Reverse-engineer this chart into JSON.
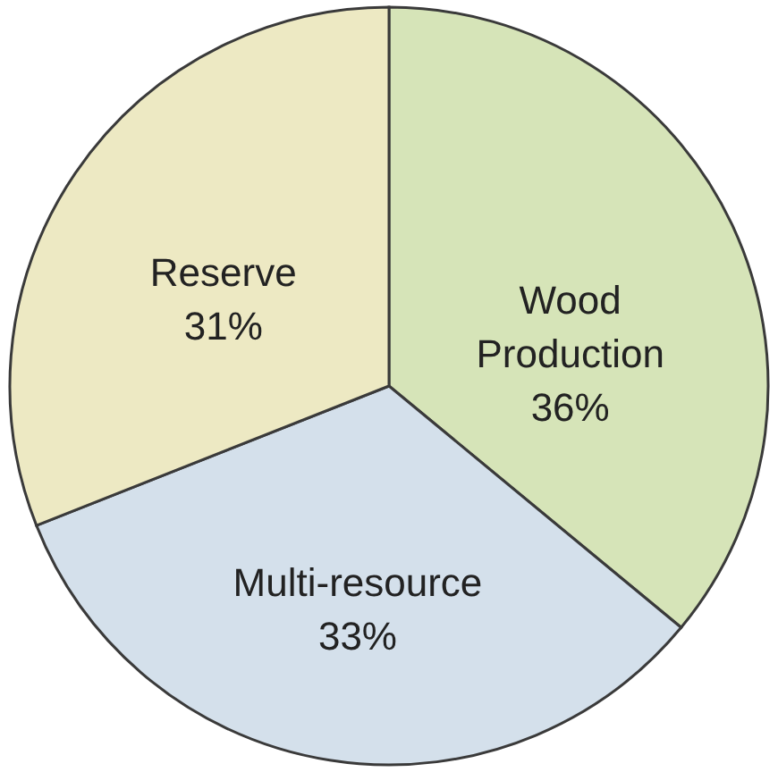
{
  "chart_data": {
    "type": "pie",
    "categories": [
      "Wood Production",
      "Multi-resource",
      "Reserve"
    ],
    "values": [
      36,
      33,
      31
    ],
    "value_labels": [
      "36%",
      "33%",
      "31%"
    ],
    "colors": [
      "#d6e4b8",
      "#d4e0eb",
      "#ede9c3"
    ]
  }
}
